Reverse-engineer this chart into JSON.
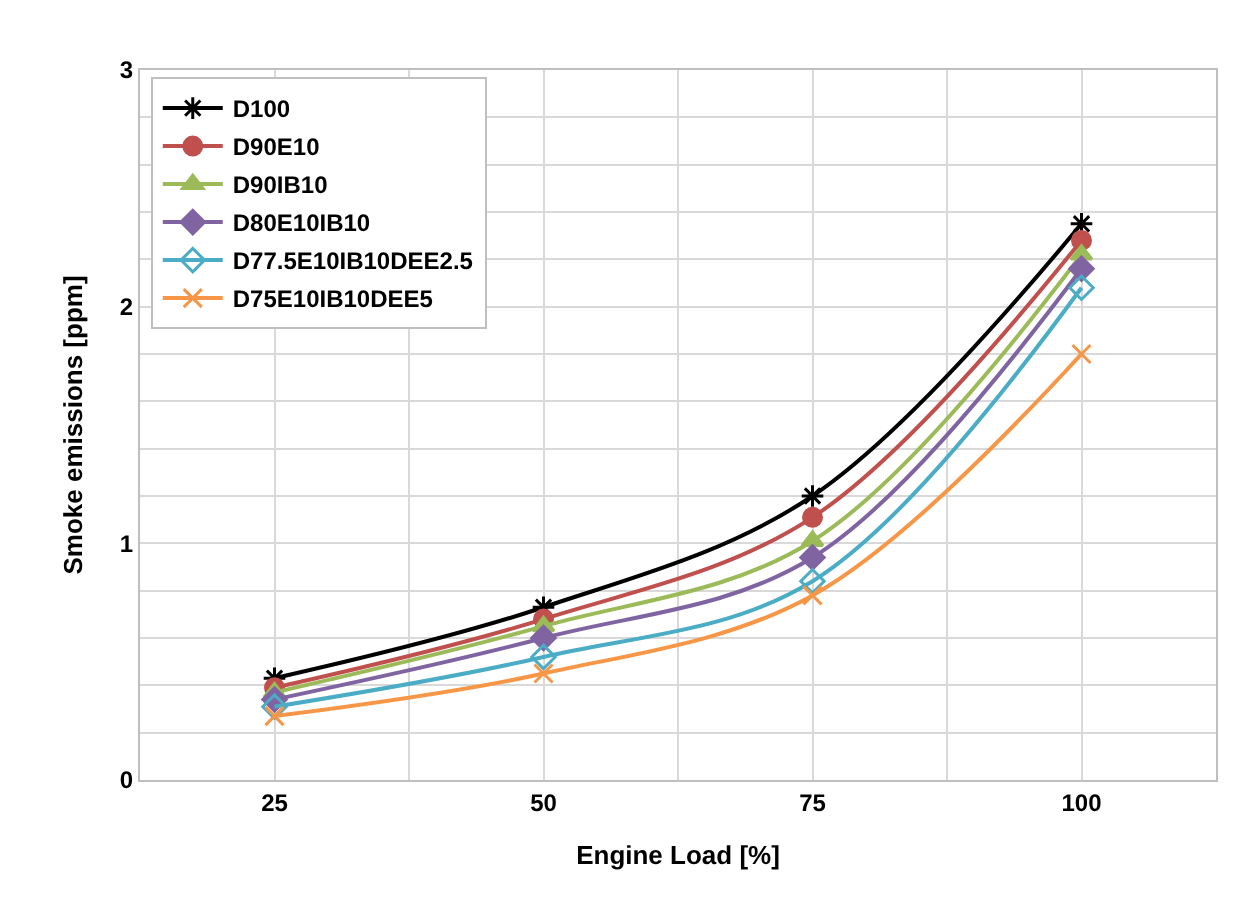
{
  "chart_data": {
    "type": "line",
    "xlabel": "Engine Load [%]",
    "ylabel": "Smoke emissions [ppm]",
    "x": [
      25,
      50,
      75,
      100
    ],
    "xlim": [
      12.5,
      112.5
    ],
    "xticks": [
      {
        "value": 12.5,
        "label": null
      },
      25,
      {
        "value": 37.5,
        "label": null
      },
      50,
      {
        "value": 62.5,
        "label": null
      },
      75,
      {
        "value": 87.5,
        "label": null
      },
      100
    ],
    "ylim": [
      0,
      3
    ],
    "yticks": [
      0,
      {
        "value": 0.2,
        "label": null
      },
      {
        "value": 0.4,
        "label": null
      },
      {
        "value": 0.6,
        "label": null
      },
      {
        "value": 0.8,
        "label": null
      },
      1,
      {
        "value": 1.2,
        "label": null
      },
      {
        "value": 1.4,
        "label": null
      },
      {
        "value": 1.6,
        "label": null
      },
      {
        "value": 1.8,
        "label": null
      },
      2,
      {
        "value": 2.2,
        "label": null
      },
      {
        "value": 2.4,
        "label": null
      },
      {
        "value": 2.6,
        "label": null
      },
      {
        "value": 2.8,
        "label": null
      },
      3
    ],
    "grid": true,
    "legend": "top left",
    "line_style": "solid",
    "series": [
      {
        "name": "D100",
        "color": "#000000",
        "marker": "cross",
        "values": [
          0.43,
          0.73,
          1.2,
          2.35
        ]
      },
      {
        "name": "D90E10",
        "color": "#c0504d",
        "marker": "circle",
        "values": [
          0.39,
          0.68,
          1.11,
          2.28
        ]
      },
      {
        "name": "D90IB10",
        "color": "#9bbb59",
        "marker": "triangle",
        "values": [
          0.37,
          0.65,
          1.01,
          2.22
        ]
      },
      {
        "name": "D80E10IB10",
        "color": "#8064a2",
        "marker": "diamond",
        "values": [
          0.34,
          0.6,
          0.94,
          2.16
        ]
      },
      {
        "name": "D77.5E10IB10DEE2.5",
        "color": "#4bacc6",
        "marker": "diamond-open",
        "values": [
          0.31,
          0.52,
          0.84,
          2.08
        ]
      },
      {
        "name": "D75E10IB10DEE5",
        "color": "#f79646",
        "marker": "cross",
        "values": [
          0.27,
          0.45,
          0.78,
          1.8
        ]
      }
    ]
  }
}
